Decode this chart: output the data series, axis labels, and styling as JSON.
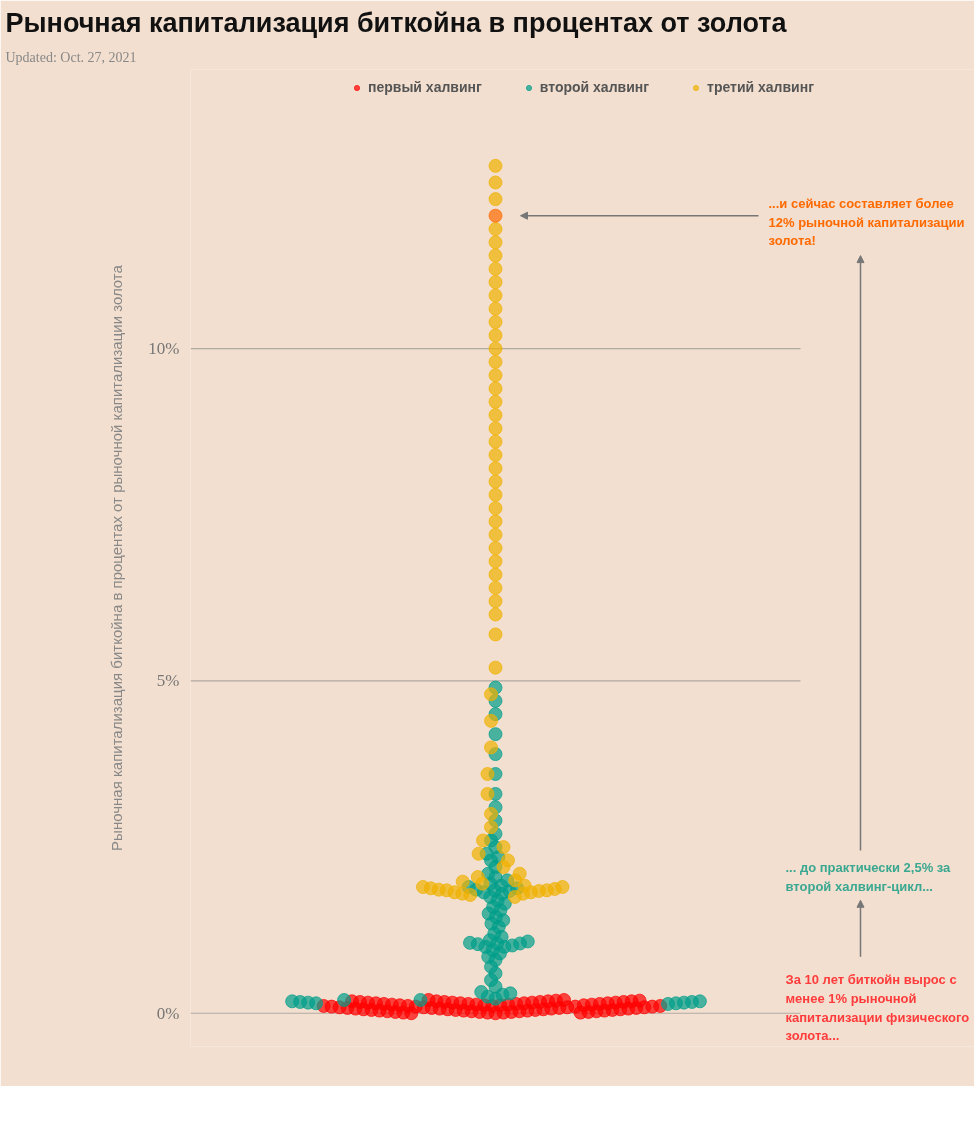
{
  "chart_data": {
    "type": "scatter",
    "title": "Рыночная капитализация биткойна в процентах от золота",
    "subtitle": "Updated: Oct. 27, 2021",
    "ylabel": "Рыночная капитализация биткойна в процентах от рыночной капитализации золота",
    "categories": [
      null
    ],
    "ylim": [
      -0.5,
      14.2
    ],
    "yticks": [
      {
        "value": 0,
        "label": "0%"
      },
      {
        "value": 5,
        "label": "5%"
      },
      {
        "value": 10,
        "label": "10%"
      }
    ],
    "tick_labels": "y",
    "grid": "y",
    "legend": "top",
    "marker": "circle",
    "series": [
      {
        "name": "первый халвинг",
        "color": "#ff0000",
        "x": [
          null,
          null,
          null,
          null,
          null,
          null,
          null,
          null,
          null,
          null,
          null,
          null,
          null,
          null,
          null,
          null,
          null,
          null,
          null,
          null,
          null,
          null,
          null,
          null,
          null,
          null,
          null,
          null,
          null,
          null,
          null,
          null,
          null,
          null,
          null,
          null,
          null,
          null,
          null,
          null,
          null,
          null,
          null,
          null,
          null,
          null,
          null,
          null,
          null,
          null,
          null,
          null,
          null,
          null,
          null,
          null,
          null,
          null,
          null,
          null,
          null,
          null,
          null,
          null,
          null,
          null,
          null,
          null,
          null,
          null,
          null,
          null,
          null,
          null,
          null,
          null,
          null,
          null
        ],
        "values": [
          0.0,
          0.01,
          0.01,
          0.02,
          0.02,
          0.03,
          0.03,
          0.04,
          0.04,
          0.05,
          0.05,
          0.06,
          0.06,
          0.07,
          0.07,
          0.08,
          0.08,
          0.09,
          0.09,
          0.1,
          0.1,
          0.11,
          0.11,
          0.12,
          0.12,
          0.13,
          0.13,
          0.14,
          0.14,
          0.15,
          0.15,
          0.16,
          0.16,
          0.17,
          0.17,
          0.18,
          0.18,
          0.19,
          0.2,
          0.0,
          0.01,
          0.01,
          0.02,
          0.02,
          0.03,
          0.03,
          0.04,
          0.04,
          0.05,
          0.05,
          0.06,
          0.06,
          0.07,
          0.07,
          0.08,
          0.08,
          0.09,
          0.09,
          0.1,
          0.1,
          0.11,
          0.11,
          0.12,
          0.12,
          0.13,
          0.13,
          0.14,
          0.14,
          0.15,
          0.15,
          0.16,
          0.16,
          0.17,
          0.17,
          0.18,
          0.18,
          0.19,
          0.2
        ]
      },
      {
        "name": "второй халвинг",
        "color": "#009e8a",
        "x": [
          null,
          null,
          null,
          null,
          null,
          null,
          null,
          null,
          null,
          null,
          null,
          null,
          null,
          null,
          null,
          null,
          null,
          null,
          null,
          null,
          null,
          null,
          null,
          null,
          null,
          null,
          null,
          null,
          null,
          null,
          null,
          null,
          null,
          null,
          null,
          null,
          null,
          null,
          null,
          null,
          null,
          null,
          null,
          null,
          null,
          null,
          null,
          null,
          null,
          null,
          null,
          null,
          null,
          null,
          null,
          null,
          null,
          null,
          null,
          null,
          null,
          null,
          null,
          null,
          null,
          null,
          null,
          null,
          null,
          null,
          null,
          null,
          null
        ],
        "values": [
          0.14,
          0.15,
          0.15,
          0.16,
          0.16,
          0.17,
          0.17,
          0.18,
          0.18,
          0.2,
          0.2,
          0.22,
          0.25,
          0.28,
          0.3,
          0.32,
          0.4,
          0.5,
          0.6,
          0.7,
          0.8,
          0.85,
          0.9,
          0.95,
          1.0,
          1.0,
          1.02,
          1.04,
          1.05,
          1.05,
          1.06,
          1.08,
          1.1,
          1.15,
          1.2,
          1.3,
          1.35,
          1.4,
          1.45,
          1.5,
          1.55,
          1.6,
          1.65,
          1.7,
          1.75,
          1.8,
          1.82,
          1.84,
          1.85,
          1.86,
          1.88,
          1.9,
          1.92,
          1.95,
          2.0,
          2.05,
          2.1,
          2.2,
          2.3,
          2.35,
          2.4,
          2.5,
          2.6,
          2.7,
          2.9,
          3.1,
          3.3,
          3.6,
          3.9,
          4.2,
          4.5,
          4.7,
          4.9
        ]
      },
      {
        "name": "третий халвинг",
        "color": "#f0b000",
        "x": [
          null,
          null,
          null,
          null,
          null,
          null,
          null,
          null,
          null,
          null,
          null,
          null,
          null,
          null,
          null,
          null,
          null,
          null,
          null,
          null,
          null,
          null,
          null,
          null,
          null,
          null,
          null,
          null,
          null,
          null,
          null,
          null,
          null,
          null,
          null,
          null,
          null,
          null,
          null,
          null,
          null,
          null,
          null,
          null,
          null,
          null,
          null,
          null,
          null,
          null,
          null,
          null,
          null,
          null,
          null,
          null,
          null,
          null,
          null,
          null,
          null,
          null,
          null,
          null,
          null,
          null,
          null
        ],
        "values": [
          1.75,
          1.78,
          1.8,
          1.8,
          1.82,
          1.82,
          1.84,
          1.85,
          1.85,
          1.86,
          1.87,
          1.88,
          1.9,
          1.9,
          1.92,
          1.95,
          1.98,
          2.0,
          2.05,
          2.1,
          2.2,
          2.3,
          2.4,
          2.5,
          2.6,
          2.8,
          3.0,
          3.3,
          3.6,
          4.0,
          4.4,
          4.8,
          5.2,
          5.7,
          6.0,
          6.2,
          6.4,
          6.6,
          6.8,
          7.0,
          7.2,
          7.4,
          7.6,
          7.8,
          8.0,
          8.2,
          8.4,
          8.6,
          8.8,
          9.0,
          9.2,
          9.4,
          9.6,
          9.8,
          10.0,
          10.2,
          10.4,
          10.6,
          10.8,
          11.0,
          11.2,
          11.4,
          11.6,
          11.8,
          12.25,
          12.5,
          12.75
        ]
      },
      {
        "color": "#ff6a00",
        "x": [
          null
        ],
        "values": [
          12.0
        ]
      }
    ],
    "annotations": [
      "...и сейчас составляет более 12% рыночной капитализации золота!",
      "... до практически 2,5% за второй халвинг-цикл...",
      "За 10 лет биткойн вырос с менее 1% рыночной капитализации физического золота..."
    ]
  }
}
